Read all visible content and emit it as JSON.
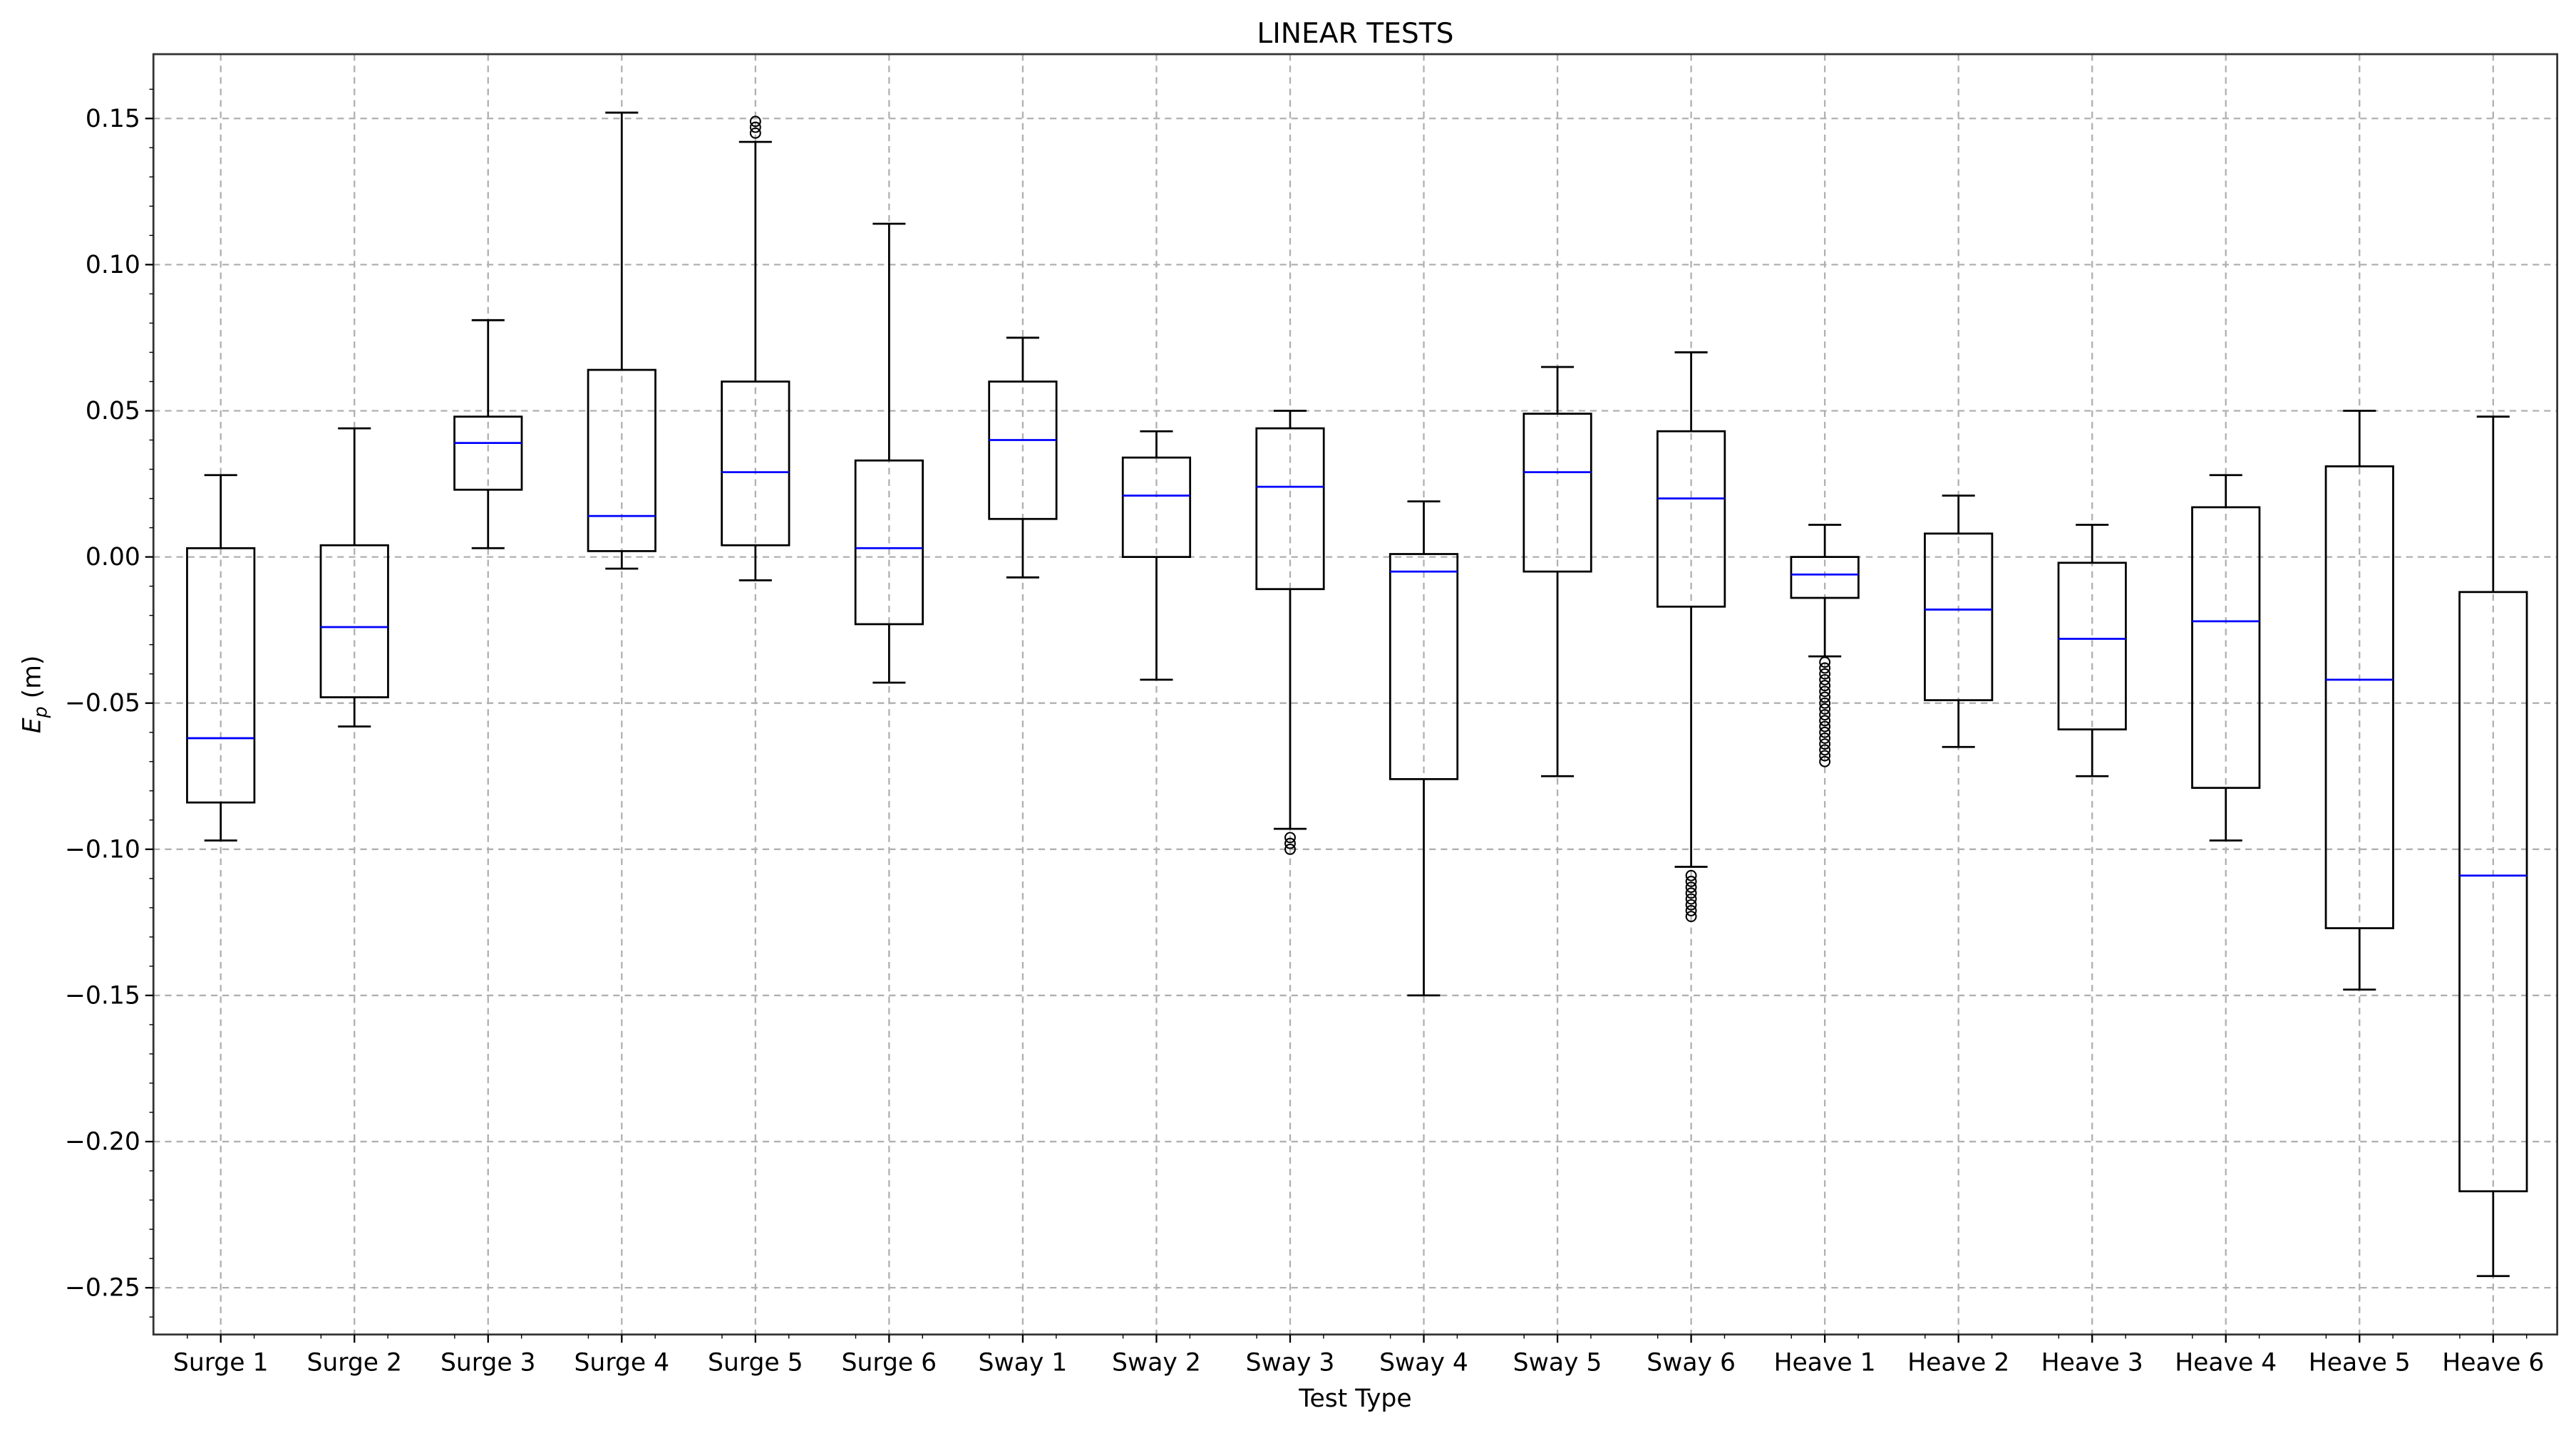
{
  "chart_data": {
    "type": "box",
    "title": "LINEAR TESTS",
    "xlabel": "Test Type",
    "ylabel_main": "E",
    "ylabel_sub": "p",
    "ylabel_unit": " (m)",
    "ylim": [
      -0.266,
      0.172
    ],
    "yticks": [
      -0.25,
      -0.2,
      -0.15,
      -0.1,
      -0.05,
      0.0,
      0.05,
      0.1,
      0.15
    ],
    "ytick_labels": [
      "−0.25",
      "−0.20",
      "−0.15",
      "−0.10",
      "−0.05",
      "0.00",
      "0.05",
      "0.10",
      "0.15"
    ],
    "grid": true,
    "colors": {
      "box": "#000000",
      "median": "#0000ff",
      "grid": "#b0b0b0"
    },
    "categories": [
      "Surge 1",
      "Surge 2",
      "Surge 3",
      "Surge 4",
      "Surge 5",
      "Surge 6",
      "Sway 1",
      "Sway 2",
      "Sway 3",
      "Sway 4",
      "Sway 5",
      "Sway 6",
      "Heave 1",
      "Heave 2",
      "Heave 3",
      "Heave 4",
      "Heave 5",
      "Heave 6"
    ],
    "boxes": [
      {
        "whisker_high": 0.028,
        "q3": 0.003,
        "median": -0.062,
        "q1": -0.084,
        "whisker_low": -0.097,
        "outliers": []
      },
      {
        "whisker_high": 0.044,
        "q3": 0.004,
        "median": -0.024,
        "q1": -0.048,
        "whisker_low": -0.058,
        "outliers": []
      },
      {
        "whisker_high": 0.081,
        "q3": 0.048,
        "median": 0.039,
        "q1": 0.023,
        "whisker_low": 0.003,
        "outliers": []
      },
      {
        "whisker_high": 0.152,
        "q3": 0.064,
        "median": 0.014,
        "q1": 0.002,
        "whisker_low": -0.004,
        "outliers": []
      },
      {
        "whisker_high": 0.142,
        "q3": 0.06,
        "median": 0.029,
        "q1": 0.004,
        "whisker_low": -0.008,
        "outliers": [
          0.145,
          0.147,
          0.149
        ]
      },
      {
        "whisker_high": 0.114,
        "q3": 0.033,
        "median": 0.003,
        "q1": -0.023,
        "whisker_low": -0.043,
        "outliers": []
      },
      {
        "whisker_high": 0.075,
        "q3": 0.06,
        "median": 0.04,
        "q1": 0.013,
        "whisker_low": -0.007,
        "outliers": []
      },
      {
        "whisker_high": 0.043,
        "q3": 0.034,
        "median": 0.021,
        "q1": 0.0,
        "whisker_low": -0.042,
        "outliers": []
      },
      {
        "whisker_high": 0.05,
        "q3": 0.044,
        "median": 0.024,
        "q1": -0.011,
        "whisker_low": -0.093,
        "outliers": [
          -0.096,
          -0.098,
          -0.1
        ]
      },
      {
        "whisker_high": 0.019,
        "q3": 0.001,
        "median": -0.005,
        "q1": -0.076,
        "whisker_low": -0.15,
        "outliers": []
      },
      {
        "whisker_high": 0.065,
        "q3": 0.049,
        "median": 0.029,
        "q1": -0.005,
        "whisker_low": -0.075,
        "outliers": []
      },
      {
        "whisker_high": 0.07,
        "q3": 0.043,
        "median": 0.02,
        "q1": -0.017,
        "whisker_low": -0.106,
        "outliers": [
          -0.109,
          -0.111,
          -0.113,
          -0.115,
          -0.117,
          -0.119,
          -0.121,
          -0.123
        ]
      },
      {
        "whisker_high": 0.011,
        "q3": 0.0,
        "median": -0.006,
        "q1": -0.014,
        "whisker_low": -0.034,
        "outliers": [
          -0.036,
          -0.038,
          -0.04,
          -0.042,
          -0.044,
          -0.046,
          -0.048,
          -0.05,
          -0.052,
          -0.054,
          -0.056,
          -0.058,
          -0.06,
          -0.062,
          -0.064,
          -0.066,
          -0.068,
          -0.07
        ]
      },
      {
        "whisker_high": 0.021,
        "q3": 0.008,
        "median": -0.018,
        "q1": -0.049,
        "whisker_low": -0.065,
        "outliers": []
      },
      {
        "whisker_high": 0.011,
        "q3": -0.002,
        "median": -0.028,
        "q1": -0.059,
        "whisker_low": -0.075,
        "outliers": []
      },
      {
        "whisker_high": 0.028,
        "q3": 0.017,
        "median": -0.022,
        "q1": -0.079,
        "whisker_low": -0.097,
        "outliers": []
      },
      {
        "whisker_high": 0.05,
        "q3": 0.031,
        "median": -0.042,
        "q1": -0.127,
        "whisker_low": -0.148,
        "outliers": []
      },
      {
        "whisker_high": 0.048,
        "q3": -0.012,
        "median": -0.109,
        "q1": -0.217,
        "whisker_low": -0.246,
        "outliers": []
      }
    ]
  }
}
